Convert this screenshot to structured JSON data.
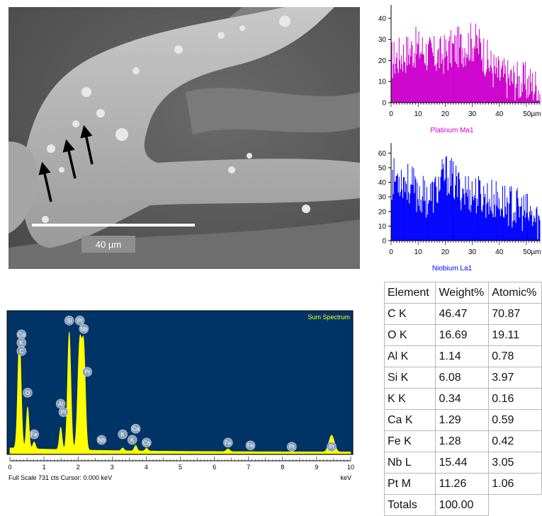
{
  "sem_image": {
    "scale_bar_label": "40 µm"
  },
  "chart_data": [
    {
      "type": "bar",
      "title": "Platinum Ma1",
      "color": "#cc00cc",
      "xlim": [
        0,
        55
      ],
      "ylim": [
        0,
        45
      ],
      "x_ticks": [
        "0",
        "10",
        "20",
        "30",
        "40",
        "50µm"
      ],
      "y_ticks": [
        "0",
        "10",
        "20",
        "30",
        "40"
      ],
      "trend": [
        [
          0,
          20
        ],
        [
          3,
          22
        ],
        [
          6,
          24
        ],
        [
          9,
          26
        ],
        [
          12,
          25
        ],
        [
          15,
          22
        ],
        [
          18,
          22
        ],
        [
          21,
          24
        ],
        [
          24,
          26
        ],
        [
          27,
          27
        ],
        [
          30,
          29
        ],
        [
          33,
          27
        ],
        [
          36,
          19
        ],
        [
          39,
          14
        ],
        [
          42,
          12
        ],
        [
          45,
          11
        ],
        [
          48,
          10
        ],
        [
          51,
          9
        ],
        [
          55,
          7
        ]
      ]
    },
    {
      "type": "bar",
      "title": "Niobium La1",
      "color": "#0000ff",
      "xlim": [
        0,
        55
      ],
      "ylim": [
        0,
        65
      ],
      "x_ticks": [
        "0",
        "10",
        "20",
        "30",
        "40",
        "50µm"
      ],
      "y_ticks": [
        "0",
        "10",
        "20",
        "30",
        "40",
        "50",
        "60"
      ],
      "trend": [
        [
          0,
          42
        ],
        [
          3,
          44
        ],
        [
          6,
          40
        ],
        [
          9,
          34
        ],
        [
          12,
          30
        ],
        [
          15,
          30
        ],
        [
          18,
          38
        ],
        [
          20,
          46
        ],
        [
          22,
          43
        ],
        [
          25,
          36
        ],
        [
          28,
          34
        ],
        [
          31,
          32
        ],
        [
          34,
          30
        ],
        [
          37,
          28
        ],
        [
          40,
          27
        ],
        [
          43,
          25
        ],
        [
          46,
          22
        ],
        [
          49,
          20
        ],
        [
          52,
          16
        ],
        [
          55,
          12
        ]
      ]
    },
    {
      "type": "area",
      "title": "Sum Spectrum",
      "xlabel": "keV",
      "xlim": [
        0,
        10
      ],
      "x_ticks": [
        "0",
        "1",
        "2",
        "3",
        "4",
        "5",
        "6",
        "7",
        "8",
        "9",
        "10"
      ],
      "footer": "Full Scale 731 cts  Cursor: 0.000 keV",
      "background": "#003366",
      "fill": "#ffff00",
      "peaks": [
        {
          "keV": 0.28,
          "height": 0.82,
          "width": 0.05
        },
        {
          "keV": 0.52,
          "height": 0.3,
          "width": 0.04
        },
        {
          "keV": 0.71,
          "height": 0.05,
          "width": 0.04
        },
        {
          "keV": 1.49,
          "height": 0.16,
          "width": 0.04
        },
        {
          "keV": 1.74,
          "height": 0.85,
          "width": 0.05
        },
        {
          "keV": 2.05,
          "height": 0.78,
          "width": 0.06
        },
        {
          "keV": 2.17,
          "height": 0.68,
          "width": 0.05
        },
        {
          "keV": 3.31,
          "height": 0.02,
          "width": 0.04
        },
        {
          "keV": 3.69,
          "height": 0.04,
          "width": 0.04
        },
        {
          "keV": 4.01,
          "height": 0.02,
          "width": 0.04
        },
        {
          "keV": 6.4,
          "height": 0.02,
          "width": 0.05
        },
        {
          "keV": 9.44,
          "height": 0.12,
          "width": 0.08
        }
      ],
      "labels": [
        {
          "text": "Ca",
          "keV": 0.34,
          "level": 0.86
        },
        {
          "text": "K",
          "keV": 0.34,
          "level": 0.8
        },
        {
          "text": "C",
          "keV": 0.34,
          "level": 0.74
        },
        {
          "text": "O",
          "keV": 0.52,
          "level": 0.44
        },
        {
          "text": "Fe",
          "keV": 0.71,
          "level": 0.14
        },
        {
          "text": "Al",
          "keV": 1.49,
          "level": 0.36
        },
        {
          "text": "Pt",
          "keV": 1.57,
          "level": 0.3
        },
        {
          "text": "Si",
          "keV": 1.74,
          "level": 0.96
        },
        {
          "text": "Pt",
          "keV": 2.05,
          "level": 0.96
        },
        {
          "text": "Nb",
          "keV": 2.17,
          "level": 0.9
        },
        {
          "text": "Pt",
          "keV": 2.27,
          "level": 0.59
        },
        {
          "text": "Nb",
          "keV": 2.69,
          "level": 0.1
        },
        {
          "text": "K",
          "keV": 3.31,
          "level": 0.14
        },
        {
          "text": "Ca",
          "keV": 3.69,
          "level": 0.18
        },
        {
          "text": "K",
          "keV": 3.59,
          "level": 0.1
        },
        {
          "text": "Ca",
          "keV": 4.01,
          "level": 0.08
        },
        {
          "text": "Fe",
          "keV": 6.4,
          "level": 0.08
        },
        {
          "text": "Fe",
          "keV": 7.06,
          "level": 0.06
        },
        {
          "text": "Pt",
          "keV": 8.27,
          "level": 0.05
        },
        {
          "text": "Pt",
          "keV": 9.44,
          "level": 0.05
        }
      ]
    },
    {
      "type": "table",
      "columns": [
        "Element",
        "Weight%",
        "Atomic%"
      ],
      "rows": [
        [
          "C K",
          "46.47",
          "70.87"
        ],
        [
          "O K",
          "16.69",
          "19.11"
        ],
        [
          "Al K",
          "1.14",
          "0.78"
        ],
        [
          "Si K",
          "6.08",
          "3.97"
        ],
        [
          "K K",
          "0.34",
          "0.16"
        ],
        [
          "Ca K",
          "1.29",
          "0.59"
        ],
        [
          "Fe K",
          "1.28",
          "0.42"
        ],
        [
          "Nb L",
          "15.44",
          "3.05"
        ],
        [
          "Pt M",
          "11.26",
          "1.06"
        ],
        [
          "Totals",
          "100.00",
          ""
        ]
      ]
    }
  ]
}
